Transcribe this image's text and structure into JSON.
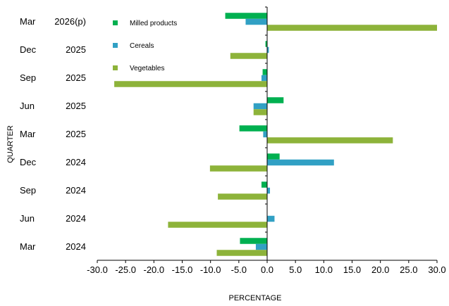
{
  "chart_data": {
    "type": "bar",
    "orientation": "horizontal",
    "categories": [
      {
        "month": "Mar",
        "year": "2024"
      },
      {
        "month": "Jun",
        "year": "2024"
      },
      {
        "month": "Sep",
        "year": "2024"
      },
      {
        "month": "Dec",
        "year": "2024"
      },
      {
        "month": "Mar",
        "year": "2025"
      },
      {
        "month": "Jun",
        "year": "2025"
      },
      {
        "month": "Sep",
        "year": "2025"
      },
      {
        "month": "Dec",
        "year": "2025"
      },
      {
        "month": "Mar",
        "year": "2026(p)"
      }
    ],
    "series": [
      {
        "name": "Milled products",
        "color": "#00b050",
        "values": [
          -4.8,
          0.0,
          -1.0,
          2.2,
          -4.9,
          2.9,
          -0.8,
          -0.3,
          -7.4
        ]
      },
      {
        "name": "Cereals",
        "color": "#31a0c4",
        "values": [
          -2.0,
          1.3,
          0.5,
          11.8,
          -0.7,
          -2.4,
          -1.0,
          0.3,
          -3.8
        ]
      },
      {
        "name": "Vegetables",
        "color": "#8db33a",
        "values": [
          -8.9,
          -17.5,
          -8.7,
          -10.1,
          22.2,
          -2.4,
          -27.0,
          -6.5,
          30.0
        ]
      }
    ],
    "xlabel": "PERCENTAGE",
    "ylabel": "QUARTER",
    "xlim": [
      -30,
      30
    ],
    "xticks": [
      "-30.0",
      "-25.0",
      "-20.0",
      "-15.0",
      "-10.0",
      "-5.0",
      "0.0",
      "5.0",
      "10.0",
      "15.0",
      "20.0",
      "25.0",
      "30.0"
    ],
    "grid": false,
    "legend_position": "top-left"
  }
}
